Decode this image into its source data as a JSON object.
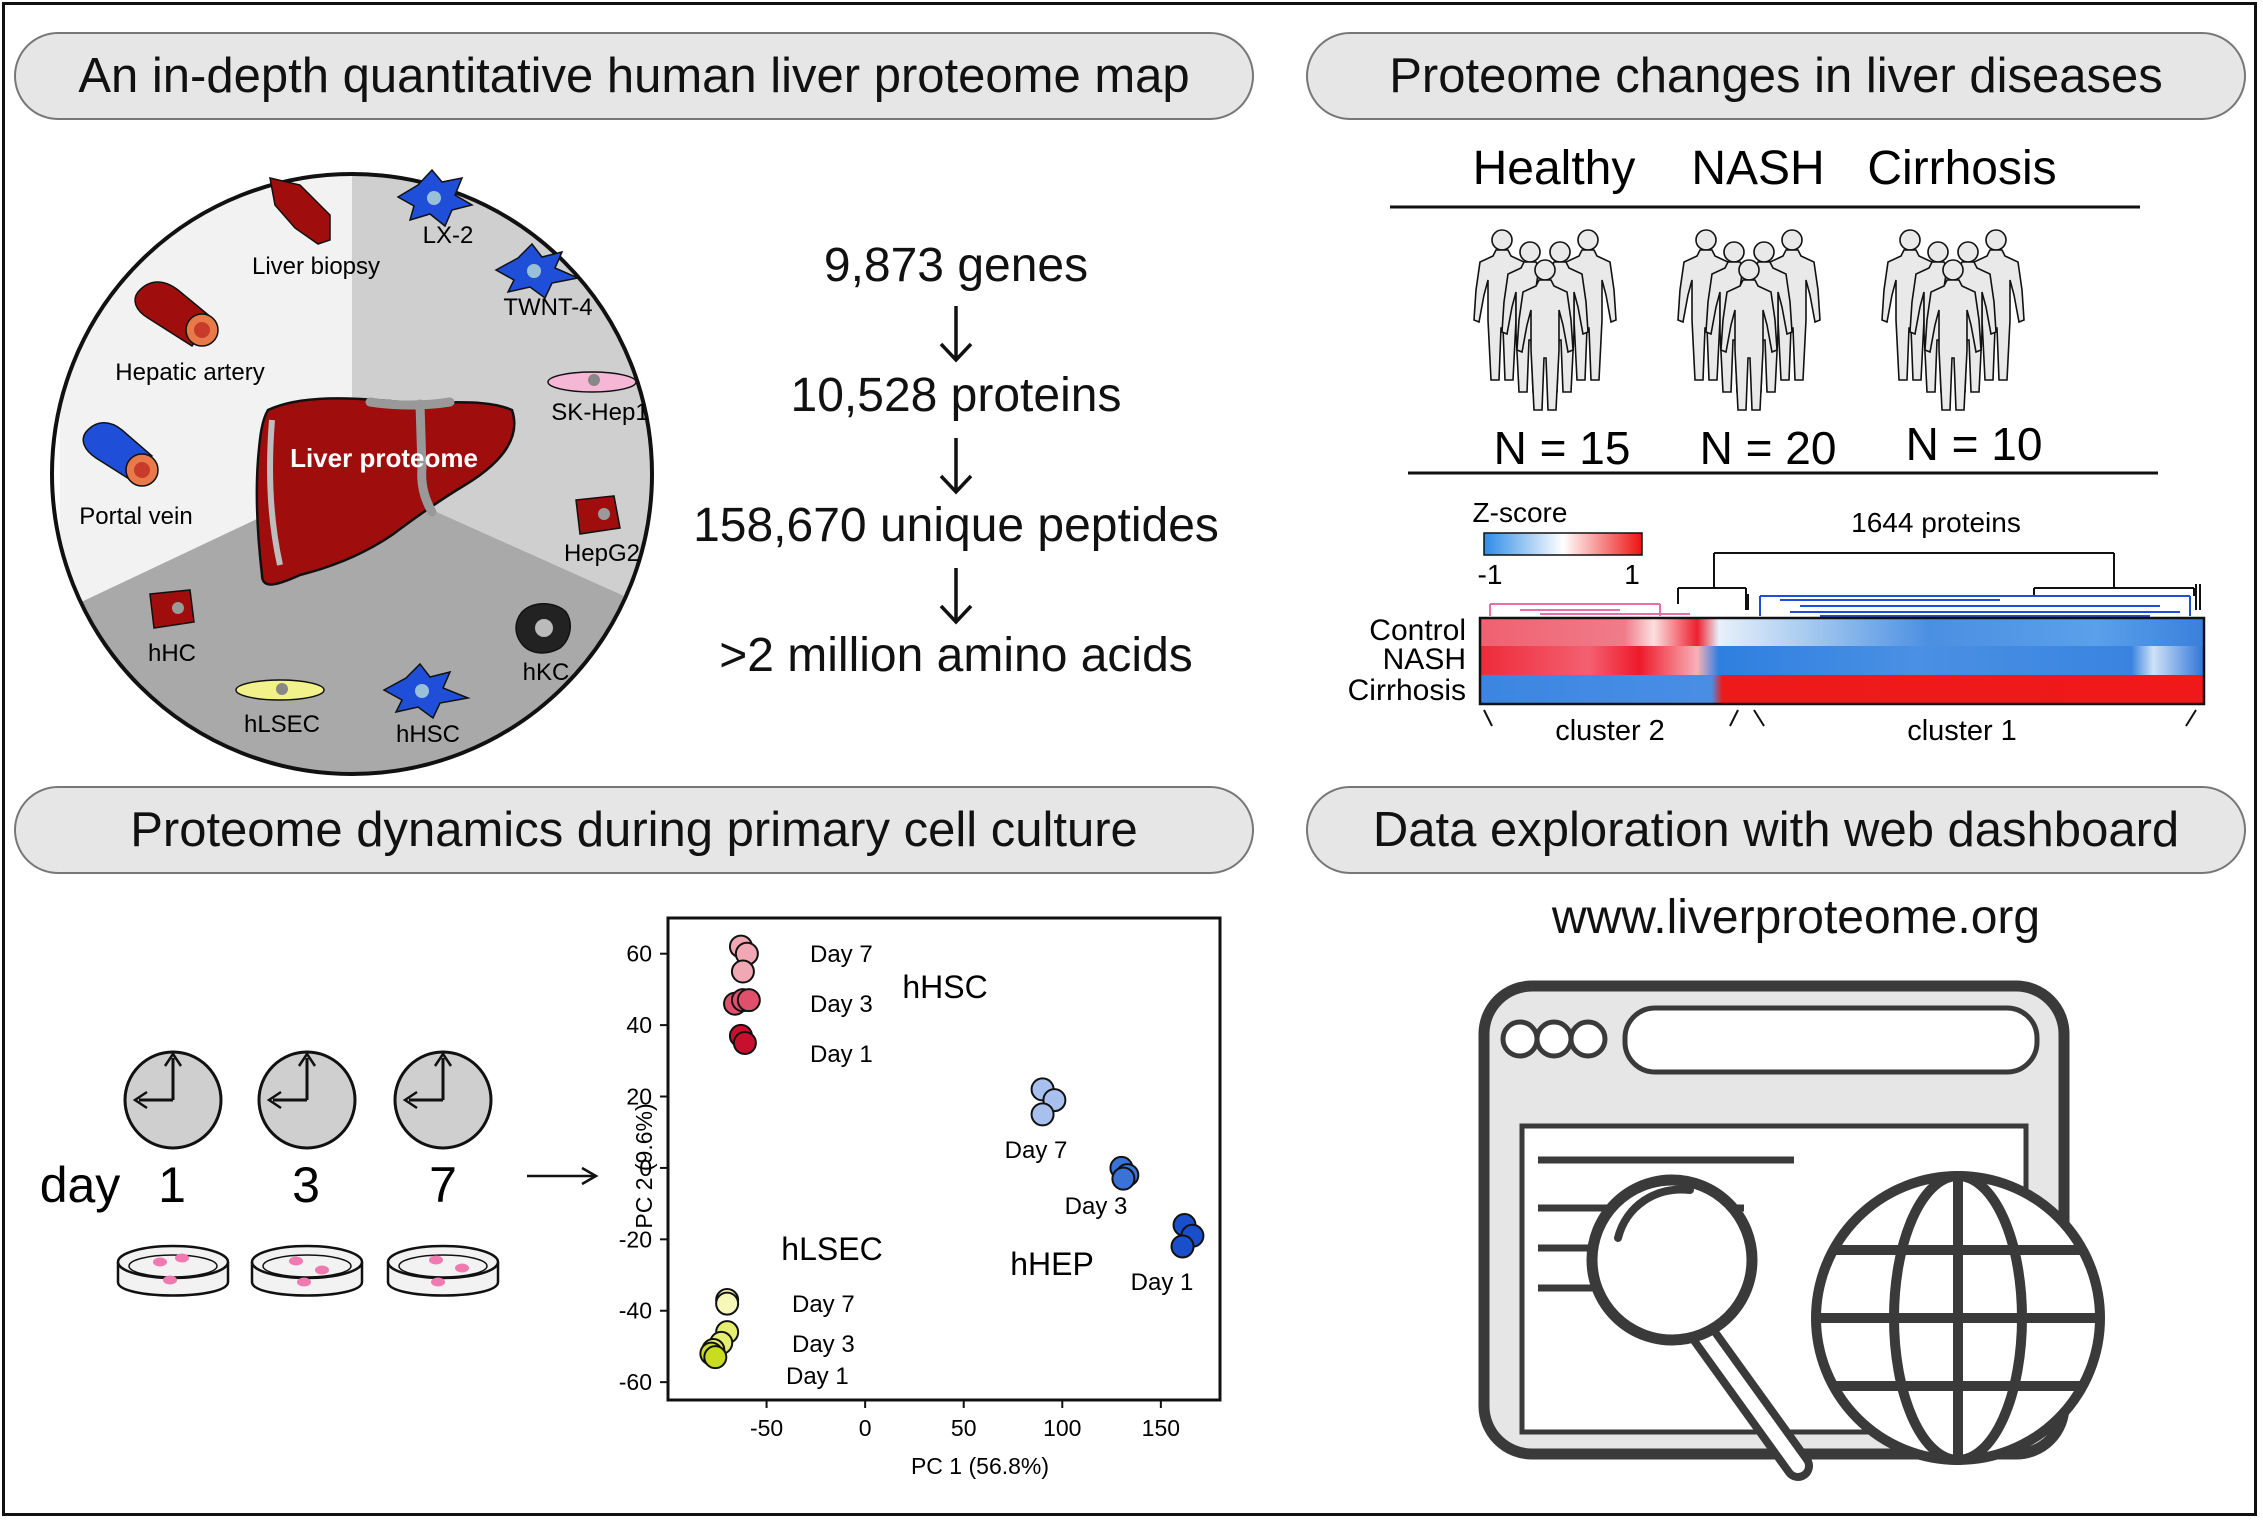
{
  "panels": {
    "map_title": "An in-depth quantitative human liver proteome map",
    "disease_title": "Proteome changes in liver diseases",
    "dynamics_title": "Proteome dynamics during primary cell culture",
    "dashboard_title": "Data exploration with web dashboard"
  },
  "circle": {
    "center_label": "Liver proteome",
    "samples": [
      "Liver biopsy",
      "Hepatic artery",
      "Portal vein"
    ],
    "cell_lines": [
      "LX-2",
      "TWNT-4",
      "SK-Hep1",
      "HepG2"
    ],
    "primary_cells": [
      "hHC",
      "hLSEC",
      "hHSC",
      "hKC"
    ]
  },
  "stats": [
    "9,873 genes",
    "10,528 proteins",
    "158,670 unique peptides",
    ">2 million amino acids"
  ],
  "disease": {
    "groups": [
      {
        "name": "Healthy",
        "n": "N = 15"
      },
      {
        "name": "NASH",
        "n": "N = 20"
      },
      {
        "name": "Cirrhosis",
        "n": "N = 10"
      }
    ],
    "heatmap": {
      "scale_title": "Z-score",
      "scale_min": "-1",
      "scale_max": "1",
      "proteins": "1644 proteins",
      "rows": [
        "Control",
        "NASH",
        "Cirrhosis"
      ],
      "clusters": [
        "cluster 2",
        "cluster 1"
      ]
    }
  },
  "culture": {
    "day_label": "day",
    "days": [
      "1",
      "3",
      "7"
    ]
  },
  "chart_data": {
    "type": "scatter",
    "xlabel": "PC 1 (56.8%)",
    "ylabel": "PC 2 (9.6%)",
    "xlim": [
      -100,
      180
    ],
    "ylim": [
      -65,
      70
    ],
    "xticks": [
      -50,
      0,
      50,
      100,
      150
    ],
    "yticks": [
      60,
      40,
      20,
      0,
      -20,
      -40,
      -60
    ],
    "series": [
      {
        "group": "hHSC",
        "day": "Day 7",
        "color": "#f0a8b4",
        "x": [
          -63,
          -60,
          -62
        ],
        "y": [
          62,
          60,
          55
        ]
      },
      {
        "group": "hHSC",
        "day": "Day 3",
        "color": "#e0506c",
        "x": [
          -66,
          -62,
          -59
        ],
        "y": [
          46,
          47,
          47
        ]
      },
      {
        "group": "hHSC",
        "day": "Day 1",
        "color": "#c8102e",
        "x": [
          -63,
          -61
        ],
        "y": [
          37,
          35
        ]
      },
      {
        "group": "hHEP",
        "day": "Day 7",
        "color": "#a8c0ee",
        "x": [
          90,
          96,
          90
        ],
        "y": [
          22,
          19,
          15
        ]
      },
      {
        "group": "hHEP",
        "day": "Day 3",
        "color": "#3a72d8",
        "x": [
          130,
          133,
          131
        ],
        "y": [
          0,
          -2,
          -3
        ]
      },
      {
        "group": "hHEP",
        "day": "Day 1",
        "color": "#1a4fcc",
        "x": [
          162,
          166,
          161
        ],
        "y": [
          -16,
          -19,
          -22
        ]
      },
      {
        "group": "hLSEC",
        "day": "Day 7",
        "color": "#f6f7b8",
        "x": [
          -70,
          -70
        ],
        "y": [
          -37,
          -38
        ]
      },
      {
        "group": "hLSEC",
        "day": "Day 3",
        "color": "#e6ee70",
        "x": [
          -70,
          -73,
          -77
        ],
        "y": [
          -46,
          -49,
          -51
        ]
      },
      {
        "group": "hLSEC",
        "day": "Day 1",
        "color": "#c8dc20",
        "x": [
          -78,
          -76
        ],
        "y": [
          -52,
          -53
        ]
      }
    ],
    "group_labels": [
      "hHSC",
      "hHEP",
      "hLSEC"
    ]
  },
  "dashboard": {
    "url": "www.liverproteome.org"
  },
  "colors": {
    "liver": "#a00d0d",
    "pink_cluster": "#e86fa8",
    "blue_cluster": "#1f4fd8"
  }
}
